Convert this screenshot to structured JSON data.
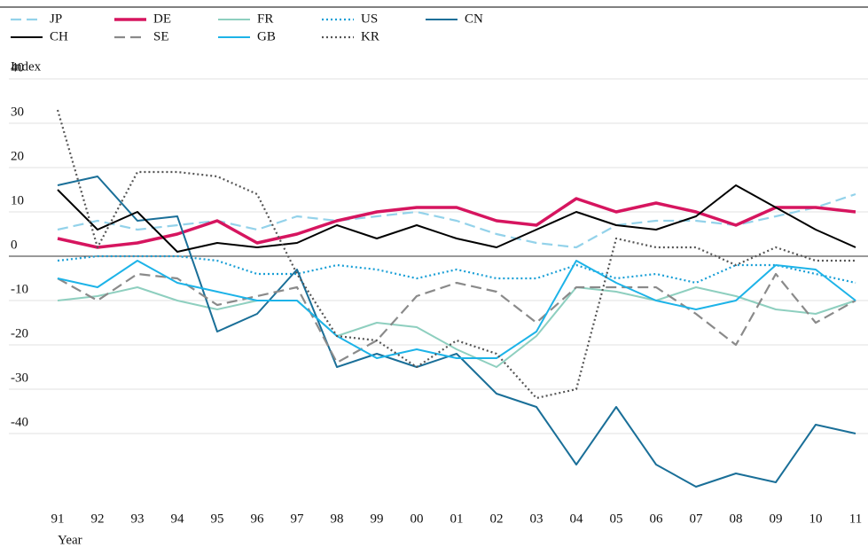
{
  "chart_data": {
    "type": "line",
    "y_axis_label": "Index",
    "x_axis_label": "Year",
    "categories": [
      "91",
      "92",
      "93",
      "94",
      "95",
      "96",
      "97",
      "98",
      "99",
      "00",
      "01",
      "02",
      "03",
      "04",
      "05",
      "06",
      "07",
      "08",
      "09",
      "10",
      "11"
    ],
    "ylim": [
      -60,
      40
    ],
    "yticks": [
      40,
      30,
      20,
      10,
      0,
      -10,
      -20,
      -30,
      -40
    ],
    "grid": true,
    "series": [
      {
        "name": "JP",
        "color": "#93d2ea",
        "dash": "dashed",
        "values": [
          6,
          8,
          6,
          7,
          8,
          6,
          9,
          8,
          9,
          10,
          8,
          5,
          3,
          2,
          7,
          8,
          8,
          7,
          9,
          11,
          14
        ]
      },
      {
        "name": "DE",
        "color": "#d6155f",
        "dash": "thick",
        "values": [
          4,
          2,
          3,
          5,
          8,
          3,
          5,
          8,
          10,
          11,
          11,
          8,
          7,
          13,
          10,
          12,
          10,
          7,
          11,
          11,
          10
        ]
      },
      {
        "name": "FR",
        "color": "#8ecfbf",
        "dash": "solid",
        "values": [
          -10,
          -9,
          -7,
          -10,
          -12,
          -10,
          -10,
          -18,
          -15,
          -16,
          -21,
          -25,
          -18,
          -7,
          -8,
          -10,
          -7,
          -9,
          -12,
          -13,
          -10
        ]
      },
      {
        "name": "US",
        "color": "#1a9fd6",
        "dash": "dotted",
        "values": [
          -1,
          0,
          0,
          0,
          -1,
          -4,
          -4,
          -2,
          -3,
          -5,
          -3,
          -5,
          -5,
          -2,
          -5,
          -4,
          -6,
          -2,
          -2,
          -4,
          -6
        ]
      },
      {
        "name": "CN",
        "color": "#1a6f98",
        "dash": "solid",
        "values": [
          16,
          18,
          8,
          9,
          -17,
          -13,
          -3,
          -25,
          -22,
          -25,
          -22,
          -31,
          -34,
          -47,
          -34,
          -47,
          -52,
          -49,
          -51,
          -38,
          -40
        ]
      },
      {
        "name": "CH",
        "color": "#000000",
        "dash": "solid",
        "values": [
          15,
          6,
          10,
          1,
          3,
          2,
          3,
          7,
          4,
          7,
          4,
          2,
          6,
          10,
          7,
          6,
          9,
          16,
          11,
          6,
          2
        ]
      },
      {
        "name": "SE",
        "color": "#8a8a8a",
        "dash": "dashed",
        "values": [
          -5,
          -10,
          -4,
          -5,
          -11,
          -9,
          -7,
          -24,
          -19,
          -9,
          -6,
          -8,
          -15,
          -7,
          -7,
          -7,
          -13,
          -20,
          -4,
          -15,
          -10
        ]
      },
      {
        "name": "GB",
        "color": "#1db3e8",
        "dash": "solid",
        "values": [
          -5,
          -7,
          -1,
          -6,
          -8,
          -10,
          -10,
          -18,
          -23,
          -21,
          -23,
          -23,
          -17,
          -1,
          -6,
          -10,
          -12,
          -10,
          -2,
          -3,
          -10
        ]
      },
      {
        "name": "KR",
        "color": "#555555",
        "dash": "dotted",
        "values": [
          33,
          2,
          19,
          19,
          18,
          14,
          -4,
          -18,
          -19,
          -25,
          -19,
          -22,
          -32,
          -30,
          4,
          2,
          2,
          -2,
          2,
          -1,
          -1
        ]
      }
    ]
  }
}
